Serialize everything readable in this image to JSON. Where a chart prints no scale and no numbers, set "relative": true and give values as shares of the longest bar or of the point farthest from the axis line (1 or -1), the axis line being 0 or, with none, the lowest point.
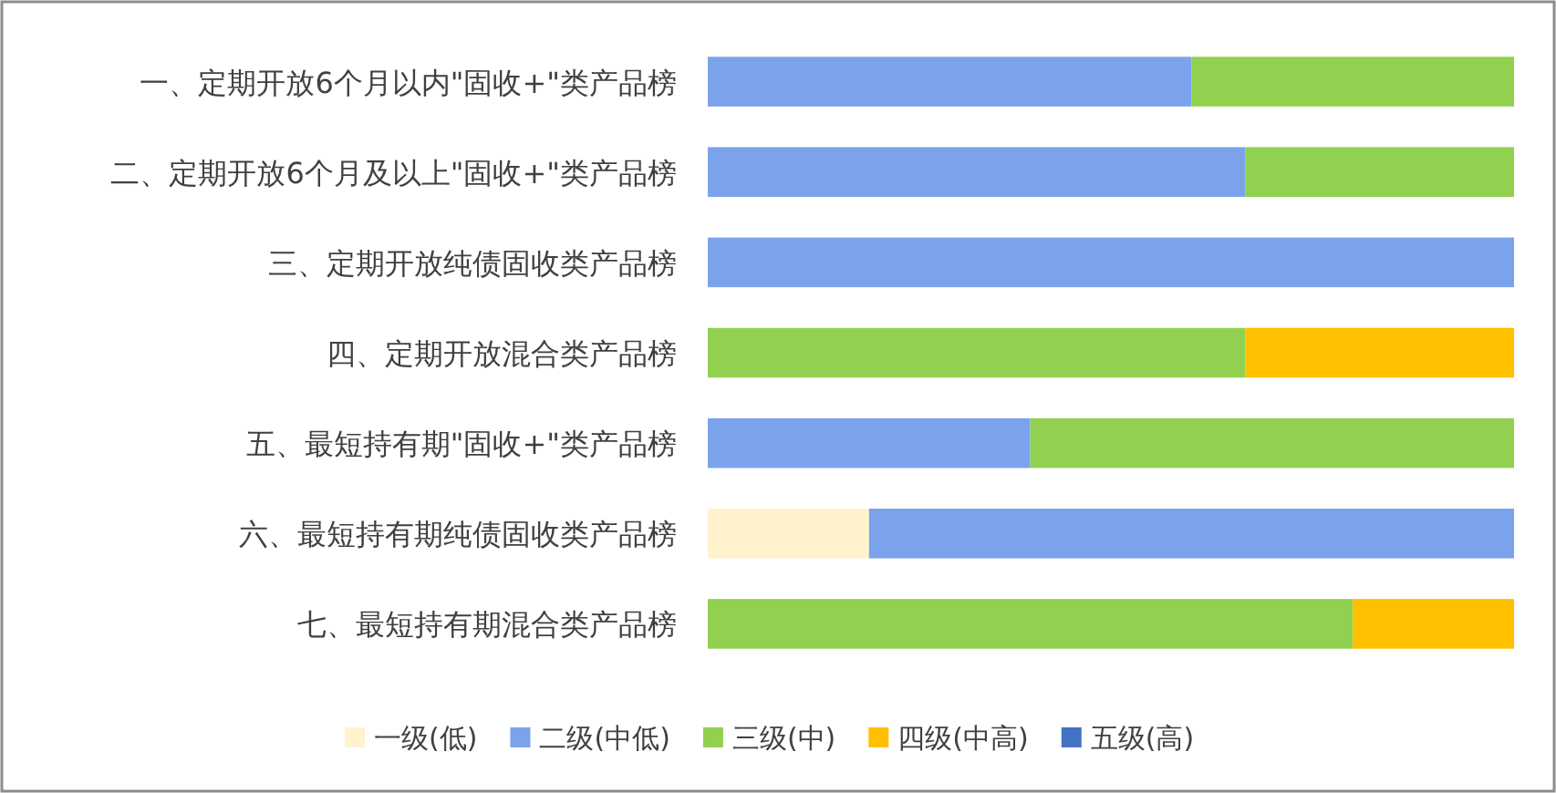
{
  "chart_data": {
    "type": "bar",
    "orientation": "horizontal",
    "stacked": true,
    "relative": true,
    "legend": "bottom",
    "categories": [
      "一、定期开放6个月以内\"固收+\"类产品榜",
      "二、定期开放6个月及以上\"固收+\"类产品榜",
      "三、定期开放纯债固收类产品榜",
      "四、定期开放混合类产品榜",
      "五、最短持有期\"固收+\"类产品榜",
      "六、最短持有期纯债固收类产品榜",
      "七、最短持有期混合类产品榜"
    ],
    "series": [
      {
        "name": "一级(低)",
        "color": "#fff2cc",
        "values": [
          null,
          null,
          null,
          null,
          null,
          0.2,
          null
        ]
      },
      {
        "name": "二级(中低)",
        "color": "#7ba3eb",
        "values": [
          0.6,
          0.667,
          1,
          null,
          0.4,
          0.8,
          null
        ]
      },
      {
        "name": "三级(中)",
        "color": "#92d050",
        "values": [
          0.4,
          0.333,
          null,
          0.667,
          0.6,
          null,
          0.8
        ]
      },
      {
        "name": "四级(中高)",
        "color": "#ffc000",
        "values": [
          null,
          null,
          null,
          0.333,
          null,
          null,
          0.2
        ]
      },
      {
        "name": "五级(高)",
        "color": "#4472c4",
        "values": [
          null,
          null,
          null,
          null,
          null,
          null,
          null
        ]
      }
    ]
  }
}
